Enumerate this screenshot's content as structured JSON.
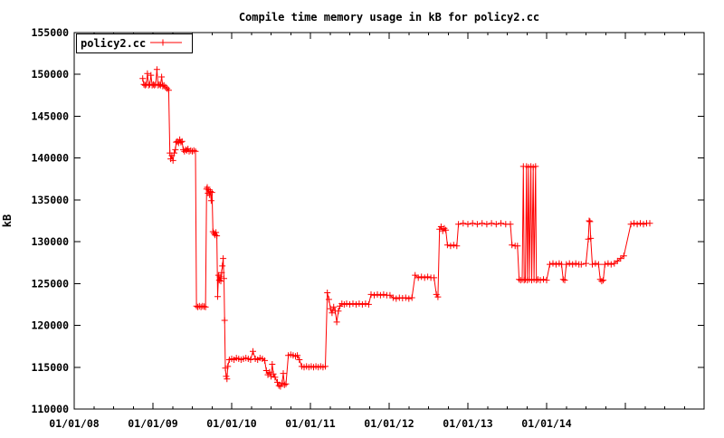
{
  "title": "Compile time memory usage in kB for policy2.cc",
  "colors": {
    "series": "#ff0000",
    "axis": "#000000",
    "background": "#ffffff"
  },
  "chart_data": {
    "type": "line",
    "title": "Compile time memory usage in kB for policy2.cc",
    "xlabel": "",
    "ylabel": "kB",
    "grid": false,
    "legend": {
      "position": "top-left-inside",
      "entries": [
        "policy2.cc"
      ]
    },
    "x_axis": {
      "unit": "date",
      "range_years": [
        2008,
        2016
      ],
      "major_tick_every_years": 1,
      "minor_tick_every_years": 0.25,
      "tick_labels": [
        "01/01/08",
        "01/01/09",
        "01/01/10",
        "01/01/11",
        "01/01/12",
        "01/01/13",
        "01/01/14"
      ],
      "tick_label_positions_years": [
        0,
        1,
        2,
        3,
        4,
        5,
        6
      ]
    },
    "y_axis": {
      "range": [
        110000,
        155000
      ],
      "tick_step": 5000,
      "tick_labels": [
        "110000",
        "115000",
        "120000",
        "125000",
        "130000",
        "135000",
        "140000",
        "145000",
        "150000",
        "155000"
      ]
    },
    "series": [
      {
        "name": "policy2.cc",
        "color": "#ff0000",
        "marker": "plus",
        "x_unit": "years_since_2008_01_01",
        "points": [
          [
            0.87,
            149500
          ],
          [
            0.885,
            148800
          ],
          [
            0.9,
            148700
          ],
          [
            0.915,
            148800
          ],
          [
            0.93,
            150100
          ],
          [
            0.945,
            148700
          ],
          [
            0.96,
            148800
          ],
          [
            0.975,
            149900
          ],
          [
            0.99,
            148700
          ],
          [
            1.005,
            148800
          ],
          [
            1.02,
            148700
          ],
          [
            1.035,
            148800
          ],
          [
            1.05,
            150600
          ],
          [
            1.065,
            148700
          ],
          [
            1.08,
            148800
          ],
          [
            1.095,
            148700
          ],
          [
            1.11,
            149700
          ],
          [
            1.125,
            148600
          ],
          [
            1.14,
            148700
          ],
          [
            1.16,
            148500
          ],
          [
            1.18,
            148300
          ],
          [
            1.2,
            148100
          ],
          [
            1.215,
            140600
          ],
          [
            1.225,
            139900
          ],
          [
            1.24,
            140300
          ],
          [
            1.255,
            139700
          ],
          [
            1.27,
            140600
          ],
          [
            1.285,
            141000
          ],
          [
            1.295,
            141900
          ],
          [
            1.31,
            142000
          ],
          [
            1.325,
            141800
          ],
          [
            1.34,
            142200
          ],
          [
            1.355,
            141900
          ],
          [
            1.37,
            142000
          ],
          [
            1.385,
            141000
          ],
          [
            1.4,
            140800
          ],
          [
            1.415,
            141000
          ],
          [
            1.43,
            140900
          ],
          [
            1.445,
            141100
          ],
          [
            1.46,
            140800
          ],
          [
            1.48,
            140900
          ],
          [
            1.5,
            140800
          ],
          [
            1.52,
            140900
          ],
          [
            1.54,
            140800
          ],
          [
            1.553,
            122300
          ],
          [
            1.57,
            122200
          ],
          [
            1.59,
            122300
          ],
          [
            1.61,
            122200
          ],
          [
            1.63,
            122300
          ],
          [
            1.65,
            122250
          ],
          [
            1.668,
            122200
          ],
          [
            1.682,
            136300
          ],
          [
            1.69,
            136500
          ],
          [
            1.7,
            135800
          ],
          [
            1.71,
            136200
          ],
          [
            1.72,
            135600
          ],
          [
            1.73,
            136000
          ],
          [
            1.74,
            134900
          ],
          [
            1.75,
            135900
          ],
          [
            1.762,
            131200
          ],
          [
            1.775,
            131000
          ],
          [
            1.788,
            130800
          ],
          [
            1.8,
            131100
          ],
          [
            1.812,
            130700
          ],
          [
            1.822,
            123450
          ],
          [
            1.832,
            126000
          ],
          [
            1.842,
            125400
          ],
          [
            1.852,
            125800
          ],
          [
            1.862,
            125300
          ],
          [
            1.872,
            126300
          ],
          [
            1.882,
            127100
          ],
          [
            1.892,
            128000
          ],
          [
            1.902,
            125600
          ],
          [
            1.91,
            120600
          ],
          [
            1.92,
            114900
          ],
          [
            1.93,
            113900
          ],
          [
            1.94,
            113600
          ],
          [
            1.95,
            115100
          ],
          [
            1.97,
            115900
          ],
          [
            2.0,
            116000
          ],
          [
            2.03,
            115900
          ],
          [
            2.06,
            116100
          ],
          [
            2.09,
            116000
          ],
          [
            2.12,
            115900
          ],
          [
            2.15,
            116000
          ],
          [
            2.18,
            116100
          ],
          [
            2.21,
            116000
          ],
          [
            2.24,
            115900
          ],
          [
            2.27,
            116900
          ],
          [
            2.3,
            116000
          ],
          [
            2.33,
            115900
          ],
          [
            2.36,
            116100
          ],
          [
            2.39,
            116000
          ],
          [
            2.42,
            115800
          ],
          [
            2.44,
            114600
          ],
          [
            2.46,
            114100
          ],
          [
            2.48,
            114400
          ],
          [
            2.5,
            113900
          ],
          [
            2.515,
            115350
          ],
          [
            2.53,
            114200
          ],
          [
            2.55,
            113800
          ],
          [
            2.58,
            113200
          ],
          [
            2.6,
            112800
          ],
          [
            2.62,
            112700
          ],
          [
            2.64,
            113100
          ],
          [
            2.655,
            114260
          ],
          [
            2.67,
            112900
          ],
          [
            2.69,
            113000
          ],
          [
            2.72,
            116400
          ],
          [
            2.75,
            116500
          ],
          [
            2.78,
            116400
          ],
          [
            2.81,
            116300
          ],
          [
            2.835,
            116400
          ],
          [
            2.86,
            115900
          ],
          [
            2.89,
            115100
          ],
          [
            2.92,
            115000
          ],
          [
            2.95,
            115100
          ],
          [
            2.98,
            115000
          ],
          [
            3.01,
            115100
          ],
          [
            3.04,
            115000
          ],
          [
            3.07,
            115100
          ],
          [
            3.1,
            115000
          ],
          [
            3.13,
            115100
          ],
          [
            3.16,
            115000
          ],
          [
            3.19,
            115100
          ],
          [
            3.215,
            123900
          ],
          [
            3.235,
            123100
          ],
          [
            3.255,
            122000
          ],
          [
            3.275,
            121500
          ],
          [
            3.295,
            122200
          ],
          [
            3.315,
            121700
          ],
          [
            3.335,
            120400
          ],
          [
            3.355,
            121700
          ],
          [
            3.375,
            122300
          ],
          [
            3.4,
            122600
          ],
          [
            3.43,
            122500
          ],
          [
            3.46,
            122600
          ],
          [
            3.5,
            122500
          ],
          [
            3.54,
            122600
          ],
          [
            3.58,
            122500
          ],
          [
            3.62,
            122600
          ],
          [
            3.66,
            122500
          ],
          [
            3.7,
            122600
          ],
          [
            3.74,
            122500
          ],
          [
            3.77,
            123700
          ],
          [
            3.81,
            123600
          ],
          [
            3.85,
            123700
          ],
          [
            3.89,
            123600
          ],
          [
            3.93,
            123700
          ],
          [
            3.97,
            123600
          ],
          [
            4.01,
            123600
          ],
          [
            4.05,
            123300
          ],
          [
            4.09,
            123200
          ],
          [
            4.13,
            123300
          ],
          [
            4.17,
            123250
          ],
          [
            4.21,
            123300
          ],
          [
            4.25,
            123200
          ],
          [
            4.29,
            123300
          ],
          [
            4.33,
            126000
          ],
          [
            4.37,
            125700
          ],
          [
            4.41,
            125800
          ],
          [
            4.45,
            125700
          ],
          [
            4.49,
            125800
          ],
          [
            4.53,
            125700
          ],
          [
            4.57,
            125700
          ],
          [
            4.6,
            123700
          ],
          [
            4.62,
            123400
          ],
          [
            4.64,
            131500
          ],
          [
            4.66,
            131800
          ],
          [
            4.68,
            131300
          ],
          [
            4.7,
            131600
          ],
          [
            4.72,
            131400
          ],
          [
            4.74,
            129600
          ],
          [
            4.78,
            129500
          ],
          [
            4.82,
            129600
          ],
          [
            4.86,
            129500
          ],
          [
            4.88,
            132100
          ],
          [
            4.94,
            132200
          ],
          [
            5.0,
            132100
          ],
          [
            5.06,
            132200
          ],
          [
            5.12,
            132100
          ],
          [
            5.18,
            132200
          ],
          [
            5.24,
            132100
          ],
          [
            5.3,
            132200
          ],
          [
            5.36,
            132100
          ],
          [
            5.42,
            132200
          ],
          [
            5.48,
            132100
          ],
          [
            5.54,
            132100
          ],
          [
            5.56,
            129600
          ],
          [
            5.6,
            129500
          ],
          [
            5.63,
            129500
          ],
          [
            5.65,
            125500
          ],
          [
            5.67,
            125400
          ],
          [
            5.69,
            125500
          ],
          [
            5.705,
            139000
          ],
          [
            5.715,
            125400
          ],
          [
            5.73,
            125500
          ],
          [
            5.745,
            139000
          ],
          [
            5.755,
            125400
          ],
          [
            5.77,
            138900
          ],
          [
            5.78,
            125500
          ],
          [
            5.8,
            139000
          ],
          [
            5.81,
            125400
          ],
          [
            5.83,
            138900
          ],
          [
            5.84,
            125500
          ],
          [
            5.86,
            139000
          ],
          [
            5.87,
            125400
          ],
          [
            5.89,
            125500
          ],
          [
            5.92,
            125400
          ],
          [
            5.96,
            125500
          ],
          [
            6.0,
            125400
          ],
          [
            6.04,
            127300
          ],
          [
            6.08,
            127400
          ],
          [
            6.12,
            127300
          ],
          [
            6.16,
            127400
          ],
          [
            6.19,
            127300
          ],
          [
            6.21,
            125500
          ],
          [
            6.23,
            125400
          ],
          [
            6.25,
            127300
          ],
          [
            6.29,
            127400
          ],
          [
            6.33,
            127300
          ],
          [
            6.37,
            127400
          ],
          [
            6.41,
            127300
          ],
          [
            6.44,
            127300
          ],
          [
            6.5,
            127400
          ],
          [
            6.53,
            130300
          ],
          [
            6.54,
            132500
          ],
          [
            6.55,
            132400
          ],
          [
            6.56,
            130400
          ],
          [
            6.58,
            127300
          ],
          [
            6.62,
            127400
          ],
          [
            6.66,
            127300
          ],
          [
            6.68,
            125500
          ],
          [
            6.7,
            125300
          ],
          [
            6.72,
            125400
          ],
          [
            6.74,
            127300
          ],
          [
            6.78,
            127400
          ],
          [
            6.82,
            127300
          ],
          [
            6.86,
            127400
          ],
          [
            6.9,
            127700
          ],
          [
            6.94,
            128000
          ],
          [
            6.98,
            128300
          ],
          [
            7.07,
            132100
          ],
          [
            7.11,
            132200
          ],
          [
            7.15,
            132100
          ],
          [
            7.19,
            132200
          ],
          [
            7.23,
            132100
          ],
          [
            7.27,
            132200
          ],
          [
            7.31,
            132200
          ]
        ]
      }
    ]
  }
}
